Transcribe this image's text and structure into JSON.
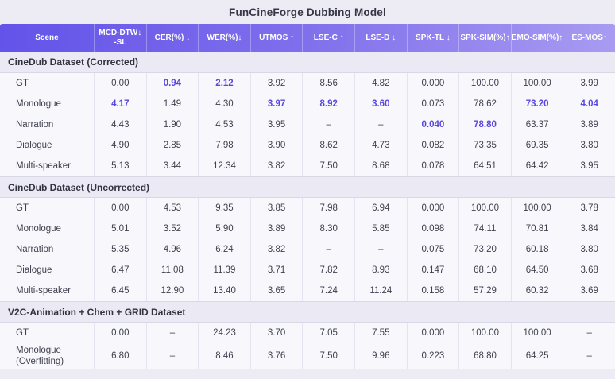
{
  "title": "FunCineForge Dubbing Model",
  "accent_color": "#5847df",
  "header_gradient_left": "#6353e9",
  "header_gradient_right": "#a89bf1",
  "icons": {
    "down_arrow": "↓",
    "up_arrow": "↑"
  },
  "columns": [
    "Scene",
    "MCD-DTW↓\n-SL",
    "CER(%) ↓",
    "WER(%)↓",
    "UTMOS ↑",
    "LSE-C ↑",
    "LSE-D ↓",
    "SPK-TL ↓",
    "SPK-SIM(%)↑",
    "EMO-SIM(%)↑",
    "ES-MOS↑"
  ],
  "sections": [
    {
      "name": "CineDub Dataset (Corrected)",
      "rows": [
        {
          "scene": "GT",
          "values": [
            "0.00",
            "0.94",
            "2.12",
            "3.92",
            "8.56",
            "4.82",
            "0.000",
            "100.00",
            "100.00",
            "3.99"
          ],
          "highlight": [
            1,
            2
          ]
        },
        {
          "scene": "Monologue",
          "values": [
            "4.17",
            "1.49",
            "4.30",
            "3.97",
            "8.92",
            "3.60",
            "0.073",
            "78.62",
            "73.20",
            "4.04"
          ],
          "highlight": [
            0,
            3,
            4,
            5,
            8,
            9
          ]
        },
        {
          "scene": "Narration",
          "values": [
            "4.43",
            "1.90",
            "4.53",
            "3.95",
            "–",
            "–",
            "0.040",
            "78.80",
            "63.37",
            "3.89"
          ],
          "highlight": [
            6,
            7
          ]
        },
        {
          "scene": "Dialogue",
          "values": [
            "4.90",
            "2.85",
            "7.98",
            "3.90",
            "8.62",
            "4.73",
            "0.082",
            "73.35",
            "69.35",
            "3.80"
          ],
          "highlight": []
        },
        {
          "scene": "Multi-speaker",
          "values": [
            "5.13",
            "3.44",
            "12.34",
            "3.82",
            "7.50",
            "8.68",
            "0.078",
            "64.51",
            "64.42",
            "3.95"
          ],
          "highlight": []
        }
      ]
    },
    {
      "name": "CineDub Dataset (Uncorrected)",
      "rows": [
        {
          "scene": "GT",
          "values": [
            "0.00",
            "4.53",
            "9.35",
            "3.85",
            "7.98",
            "6.94",
            "0.000",
            "100.00",
            "100.00",
            "3.78"
          ],
          "highlight": []
        },
        {
          "scene": "Monologue",
          "values": [
            "5.01",
            "3.52",
            "5.90",
            "3.89",
            "8.30",
            "5.85",
            "0.098",
            "74.11",
            "70.81",
            "3.84"
          ],
          "highlight": []
        },
        {
          "scene": "Narration",
          "values": [
            "5.35",
            "4.96",
            "6.24",
            "3.82",
            "–",
            "–",
            "0.075",
            "73.20",
            "60.18",
            "3.80"
          ],
          "highlight": []
        },
        {
          "scene": "Dialogue",
          "values": [
            "6.47",
            "11.08",
            "11.39",
            "3.71",
            "7.82",
            "8.93",
            "0.147",
            "68.10",
            "64.50",
            "3.68"
          ],
          "highlight": []
        },
        {
          "scene": "Multi-speaker",
          "values": [
            "6.45",
            "12.90",
            "13.40",
            "3.65",
            "7.24",
            "11.24",
            "0.158",
            "57.29",
            "60.32",
            "3.69"
          ],
          "highlight": []
        }
      ]
    },
    {
      "name": "V2C-Animation + Chem + GRID Dataset",
      "rows": [
        {
          "scene": "GT",
          "values": [
            "0.00",
            "–",
            "24.23",
            "3.70",
            "7.05",
            "7.55",
            "0.000",
            "100.00",
            "100.00",
            "–"
          ],
          "highlight": []
        },
        {
          "scene": "Monologue (Overfitting)",
          "values": [
            "6.80",
            "–",
            "8.46",
            "3.76",
            "7.50",
            "9.96",
            "0.223",
            "68.80",
            "64.25",
            "–"
          ],
          "highlight": []
        }
      ]
    }
  ],
  "chart_data": {
    "type": "table",
    "title": "FunCineForge Dubbing Model",
    "columns": [
      "Scene",
      "MCD-DTW-SL ↓",
      "CER(%) ↓",
      "WER(%) ↓",
      "UTMOS ↑",
      "LSE-C ↑",
      "LSE-D ↓",
      "SPK-TL ↓",
      "SPK-SIM(%) ↑",
      "EMO-SIM(%) ↑",
      "ES-MOS ↑"
    ],
    "groups": [
      {
        "group": "CineDub Dataset (Corrected)",
        "rows": [
          [
            "GT",
            0.0,
            0.94,
            2.12,
            3.92,
            8.56,
            4.82,
            0.0,
            100.0,
            100.0,
            3.99
          ],
          [
            "Monologue",
            4.17,
            1.49,
            4.3,
            3.97,
            8.92,
            3.6,
            0.073,
            78.62,
            73.2,
            4.04
          ],
          [
            "Narration",
            4.43,
            1.9,
            4.53,
            3.95,
            null,
            null,
            0.04,
            78.8,
            63.37,
            3.89
          ],
          [
            "Dialogue",
            4.9,
            2.85,
            7.98,
            3.9,
            8.62,
            4.73,
            0.082,
            73.35,
            69.35,
            3.8
          ],
          [
            "Multi-speaker",
            5.13,
            3.44,
            12.34,
            3.82,
            7.5,
            8.68,
            0.078,
            64.51,
            64.42,
            3.95
          ]
        ]
      },
      {
        "group": "CineDub Dataset (Uncorrected)",
        "rows": [
          [
            "GT",
            0.0,
            4.53,
            9.35,
            3.85,
            7.98,
            6.94,
            0.0,
            100.0,
            100.0,
            3.78
          ],
          [
            "Monologue",
            5.01,
            3.52,
            5.9,
            3.89,
            8.3,
            5.85,
            0.098,
            74.11,
            70.81,
            3.84
          ],
          [
            "Narration",
            5.35,
            4.96,
            6.24,
            3.82,
            null,
            null,
            0.075,
            73.2,
            60.18,
            3.8
          ],
          [
            "Dialogue",
            6.47,
            11.08,
            11.39,
            3.71,
            7.82,
            8.93,
            0.147,
            68.1,
            64.5,
            3.68
          ],
          [
            "Multi-speaker",
            6.45,
            12.9,
            13.4,
            3.65,
            7.24,
            11.24,
            0.158,
            57.29,
            60.32,
            3.69
          ]
        ]
      },
      {
        "group": "V2C-Animation + Chem + GRID Dataset",
        "rows": [
          [
            "GT",
            0.0,
            null,
            24.23,
            3.7,
            7.05,
            7.55,
            0.0,
            100.0,
            100.0,
            null
          ],
          [
            "Monologue (Overfitting)",
            6.8,
            null,
            8.46,
            3.76,
            7.5,
            9.96,
            0.223,
            68.8,
            64.25,
            null
          ]
        ]
      }
    ]
  }
}
